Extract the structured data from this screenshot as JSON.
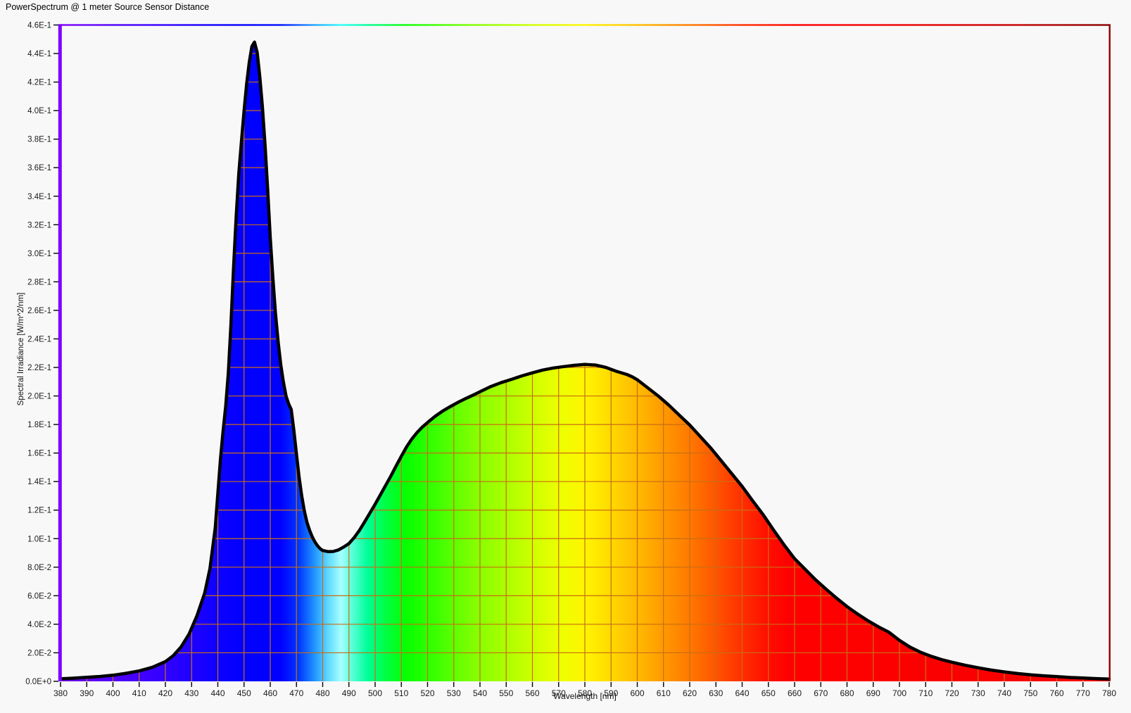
{
  "window": {
    "title": "PowerSpectrum @ 1 meter Source Sensor Distance"
  },
  "chart_data": {
    "type": "area",
    "title": "PowerSpectrum @ 1 meter Source Sensor Distance",
    "xlabel": "Wavelength [nm]",
    "ylabel": "Spectral Irradiance [W/m^2/nm]",
    "xlim": [
      380,
      780
    ],
    "ylim": [
      0,
      0.46
    ],
    "grid": true,
    "legend": "none",
    "x_ticks": [
      380,
      390,
      400,
      410,
      420,
      430,
      440,
      450,
      460,
      470,
      480,
      490,
      500,
      510,
      520,
      530,
      540,
      550,
      560,
      570,
      580,
      590,
      600,
      610,
      620,
      630,
      640,
      650,
      660,
      670,
      680,
      690,
      700,
      710,
      720,
      730,
      740,
      750,
      760,
      770,
      780
    ],
    "y_ticks": [
      {
        "value": 0.0,
        "label": "0.0E+0"
      },
      {
        "value": 0.02,
        "label": "2.0E-2"
      },
      {
        "value": 0.04,
        "label": "4.0E-2"
      },
      {
        "value": 0.06,
        "label": "6.0E-2"
      },
      {
        "value": 0.08,
        "label": "8.0E-2"
      },
      {
        "value": 0.1,
        "label": "1.0E-1"
      },
      {
        "value": 0.12,
        "label": "1.2E-1"
      },
      {
        "value": 0.14,
        "label": "1.4E-1"
      },
      {
        "value": 0.16,
        "label": "1.6E-1"
      },
      {
        "value": 0.18,
        "label": "1.8E-1"
      },
      {
        "value": 0.2,
        "label": "2.0E-1"
      },
      {
        "value": 0.22,
        "label": "2.2E-1"
      },
      {
        "value": 0.24,
        "label": "2.4E-1"
      },
      {
        "value": 0.26,
        "label": "2.6E-1"
      },
      {
        "value": 0.28,
        "label": "2.8E-1"
      },
      {
        "value": 0.3,
        "label": "3.0E-1"
      },
      {
        "value": 0.32,
        "label": "3.2E-1"
      },
      {
        "value": 0.34,
        "label": "3.4E-1"
      },
      {
        "value": 0.36,
        "label": "3.6E-1"
      },
      {
        "value": 0.38,
        "label": "3.8E-1"
      },
      {
        "value": 0.4,
        "label": "4.0E-1"
      },
      {
        "value": 0.42,
        "label": "4.2E-1"
      },
      {
        "value": 0.44,
        "label": "4.4E-1"
      },
      {
        "value": 0.46,
        "label": "4.6E-1"
      }
    ],
    "series": [
      {
        "name": "Spectral Irradiance",
        "points": [
          [
            380,
            0.0018
          ],
          [
            385,
            0.0022
          ],
          [
            390,
            0.0028
          ],
          [
            395,
            0.0034
          ],
          [
            400,
            0.0043
          ],
          [
            405,
            0.0056
          ],
          [
            410,
            0.0073
          ],
          [
            415,
            0.0098
          ],
          [
            420,
            0.0138
          ],
          [
            423,
            0.018
          ],
          [
            426,
            0.0242
          ],
          [
            429,
            0.033
          ],
          [
            432,
            0.0458
          ],
          [
            435,
            0.062
          ],
          [
            437,
            0.079
          ],
          [
            439,
            0.1075
          ],
          [
            441,
            0.1555
          ],
          [
            442,
            0.175
          ],
          [
            443,
            0.193
          ],
          [
            444,
            0.216
          ],
          [
            445,
            0.25
          ],
          [
            446,
            0.2905
          ],
          [
            447,
            0.326
          ],
          [
            448,
            0.356
          ],
          [
            449,
            0.378
          ],
          [
            450,
            0.4
          ],
          [
            451,
            0.419
          ],
          [
            452,
            0.434
          ],
          [
            453,
            0.445
          ],
          [
            454,
            0.448
          ],
          [
            455,
            0.4408
          ],
          [
            456,
            0.424
          ],
          [
            457,
            0.403
          ],
          [
            458,
            0.376
          ],
          [
            459,
            0.345
          ],
          [
            460,
            0.311
          ],
          [
            461,
            0.283
          ],
          [
            462,
            0.258
          ],
          [
            463,
            0.238
          ],
          [
            464,
            0.222
          ],
          [
            465,
            0.21
          ],
          [
            466,
            0.2
          ],
          [
            467,
            0.1945
          ],
          [
            468,
            0.1905
          ],
          [
            469,
            0.176
          ],
          [
            470,
            0.159
          ],
          [
            471,
            0.143
          ],
          [
            472,
            0.13
          ],
          [
            473,
            0.1195
          ],
          [
            474,
            0.1115
          ],
          [
            475,
            0.1058
          ],
          [
            476,
            0.1013
          ],
          [
            477,
            0.0978
          ],
          [
            478,
            0.095
          ],
          [
            479,
            0.093
          ],
          [
            480,
            0.0917
          ],
          [
            482,
            0.0909
          ],
          [
            484,
            0.091
          ],
          [
            486,
            0.0921
          ],
          [
            488,
            0.0941
          ],
          [
            490,
            0.0966
          ],
          [
            492,
            0.1007
          ],
          [
            494,
            0.1057
          ],
          [
            496,
            0.1118
          ],
          [
            498,
            0.1179
          ],
          [
            500,
            0.1241
          ],
          [
            502,
            0.1307
          ],
          [
            504,
            0.1373
          ],
          [
            506,
            0.1439
          ],
          [
            508,
            0.1509
          ],
          [
            510,
            0.1578
          ],
          [
            512,
            0.1643
          ],
          [
            514,
            0.1698
          ],
          [
            516,
            0.1744
          ],
          [
            518,
            0.1782
          ],
          [
            520,
            0.1814
          ],
          [
            523,
            0.1859
          ],
          [
            526,
            0.1897
          ],
          [
            529,
            0.1929
          ],
          [
            532,
            0.1959
          ],
          [
            535,
            0.1986
          ],
          [
            538,
            0.2011
          ],
          [
            541,
            0.2039
          ],
          [
            544,
            0.2065
          ],
          [
            548,
            0.2093
          ],
          [
            552,
            0.2116
          ],
          [
            556,
            0.2141
          ],
          [
            560,
            0.2162
          ],
          [
            564,
            0.2182
          ],
          [
            568,
            0.2196
          ],
          [
            572,
            0.2206
          ],
          [
            576,
            0.2215
          ],
          [
            580,
            0.2221
          ],
          [
            584,
            0.2217
          ],
          [
            588,
            0.22
          ],
          [
            592,
            0.2173
          ],
          [
            596,
            0.2151
          ],
          [
            598,
            0.2135
          ],
          [
            600,
            0.2114
          ],
          [
            604,
            0.2057
          ],
          [
            608,
            0.2
          ],
          [
            612,
            0.1936
          ],
          [
            616,
            0.1866
          ],
          [
            620,
            0.1796
          ],
          [
            624,
            0.1716
          ],
          [
            628,
            0.1636
          ],
          [
            632,
            0.1546
          ],
          [
            636,
            0.1456
          ],
          [
            640,
            0.1366
          ],
          [
            644,
            0.1266
          ],
          [
            648,
            0.1168
          ],
          [
            652,
            0.106
          ],
          [
            656,
            0.0956
          ],
          [
            660,
            0.086
          ],
          [
            664,
            0.0786
          ],
          [
            668,
            0.0712
          ],
          [
            672,
            0.0646
          ],
          [
            676,
            0.0583
          ],
          [
            680,
            0.0524
          ],
          [
            684,
            0.0472
          ],
          [
            688,
            0.0424
          ],
          [
            692,
            0.0382
          ],
          [
            696,
            0.0344
          ],
          [
            700,
            0.0287
          ],
          [
            704,
            0.024
          ],
          [
            708,
            0.0204
          ],
          [
            712,
            0.0176
          ],
          [
            716,
            0.0153
          ],
          [
            720,
            0.0134
          ],
          [
            725,
            0.0113
          ],
          [
            730,
            0.0095
          ],
          [
            735,
            0.0079
          ],
          [
            740,
            0.0066
          ],
          [
            745,
            0.0055
          ],
          [
            750,
            0.0046
          ],
          [
            755,
            0.0039
          ],
          [
            760,
            0.0033
          ],
          [
            765,
            0.0027
          ],
          [
            770,
            0.0023
          ],
          [
            775,
            0.0019
          ],
          [
            780,
            0.0016
          ]
        ]
      }
    ],
    "fill_gradient": [
      {
        "nm": 380,
        "color": "#6B00E0"
      },
      {
        "nm": 400,
        "color": "#5000F8"
      },
      {
        "nm": 415,
        "color": "#3A00FF"
      },
      {
        "nm": 428,
        "color": "#2200FF"
      },
      {
        "nm": 440,
        "color": "#0D00FF"
      },
      {
        "nm": 450,
        "color": "#0000FF"
      },
      {
        "nm": 464,
        "color": "#0000FF"
      },
      {
        "nm": 471,
        "color": "#0038FF"
      },
      {
        "nm": 477,
        "color": "#2196FF"
      },
      {
        "nm": 482,
        "color": "#5FD9FF"
      },
      {
        "nm": 487,
        "color": "#A5FFFF"
      },
      {
        "nm": 492,
        "color": "#4DFFD0"
      },
      {
        "nm": 497,
        "color": "#00FF99"
      },
      {
        "nm": 504,
        "color": "#00FF44"
      },
      {
        "nm": 512,
        "color": "#07FF00"
      },
      {
        "nm": 524,
        "color": "#3FFF00"
      },
      {
        "nm": 537,
        "color": "#7FFF00"
      },
      {
        "nm": 549,
        "color": "#A8FF00"
      },
      {
        "nm": 561,
        "color": "#D2FF00"
      },
      {
        "nm": 571,
        "color": "#EDFF00"
      },
      {
        "nm": 580,
        "color": "#FFF500"
      },
      {
        "nm": 588,
        "color": "#FFDF00"
      },
      {
        "nm": 596,
        "color": "#FFC600"
      },
      {
        "nm": 604,
        "color": "#FFAD00"
      },
      {
        "nm": 612,
        "color": "#FF9300"
      },
      {
        "nm": 620,
        "color": "#FF7900"
      },
      {
        "nm": 630,
        "color": "#FF5400"
      },
      {
        "nm": 640,
        "color": "#FF2F00"
      },
      {
        "nm": 650,
        "color": "#FF0D00"
      },
      {
        "nm": 658,
        "color": "#FF0000"
      },
      {
        "nm": 780,
        "color": "#F60000"
      }
    ],
    "border_gradient": [
      {
        "nm": 380,
        "color": "#7F00FF"
      },
      {
        "nm": 400,
        "color": "#5000F8"
      },
      {
        "nm": 415,
        "color": "#3A00FF"
      },
      {
        "nm": 428,
        "color": "#2200FF"
      },
      {
        "nm": 440,
        "color": "#0D00FF"
      },
      {
        "nm": 452,
        "color": "#0000FF"
      },
      {
        "nm": 464,
        "color": "#0010FF"
      },
      {
        "nm": 477,
        "color": "#21A6FF"
      },
      {
        "nm": 487,
        "color": "#2EFFFF"
      },
      {
        "nm": 497,
        "color": "#00FF99"
      },
      {
        "nm": 512,
        "color": "#07FF00"
      },
      {
        "nm": 537,
        "color": "#7FFF00"
      },
      {
        "nm": 561,
        "color": "#D2FF00"
      },
      {
        "nm": 580,
        "color": "#FFF500"
      },
      {
        "nm": 600,
        "color": "#FFC000"
      },
      {
        "nm": 620,
        "color": "#FF7900"
      },
      {
        "nm": 640,
        "color": "#FF2F00"
      },
      {
        "nm": 660,
        "color": "#FF0000"
      },
      {
        "nm": 700,
        "color": "#F00000"
      },
      {
        "nm": 745,
        "color": "#C40000"
      },
      {
        "nm": 780,
        "color": "#8B0000"
      }
    ],
    "colors": {
      "background": "#F8F8F8",
      "grid": "#C86E14",
      "curve": "#000000",
      "left_axis": "#7F00FF",
      "right_border": "#8B0000",
      "tick": "#000000",
      "tick_text": "#1A1A1A"
    }
  }
}
